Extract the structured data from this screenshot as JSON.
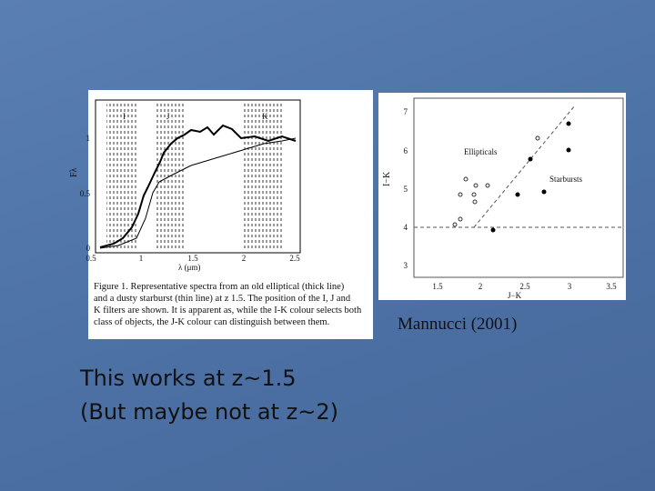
{
  "slide": {
    "figure_left": {
      "filter_labels": [
        "I",
        "J",
        "K"
      ],
      "ylabel": "Fλ",
      "xlabel": "λ (μm)",
      "xticks": [
        0.5,
        1,
        1.5,
        2,
        2.5
      ],
      "yticks": [
        0,
        0.5,
        1
      ],
      "caption_lines": [
        "Figure 1.      Representative spectra from an old elliptical (thick line)",
        "and a dusty starburst (thin line) at z   1.5. The position of the I, J and",
        "K filters are shown. It is apparent as, while the I-K colour selects both",
        "class of objects, the J-K colour can distinguish between them."
      ]
    },
    "figure_right": {
      "ylabel": "I−K",
      "xlabel": "J−K",
      "xticks": [
        1.5,
        2,
        2.5,
        3,
        3.5
      ],
      "yticks": [
        3,
        4,
        5,
        6,
        7
      ],
      "annotations": [
        "Ellipticals",
        "Starbursts"
      ]
    },
    "credit": "Mannucci (2001)",
    "body_lines": [
      "This works at z~1.5",
      "(But maybe not at z~2)"
    ]
  }
}
